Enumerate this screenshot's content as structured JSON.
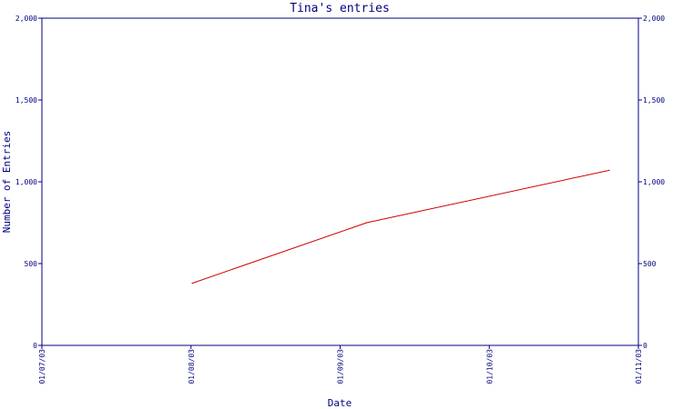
{
  "chart_data": {
    "type": "line",
    "title": "Tina's entries",
    "xlabel": "Date",
    "ylabel": "Number of Entries",
    "x_ticks": [
      "01/07/03",
      "01/08/03",
      "01/09/03",
      "01/10/03",
      "01/11/03"
    ],
    "y_ticks": [
      "0",
      "500",
      "1,000",
      "1,500",
      "2,000"
    ],
    "ylim": [
      0,
      2000
    ],
    "xlim": [
      "2003-07-01",
      "2003-11-01"
    ],
    "grid": false,
    "colors": {
      "axis": "#000080",
      "series": "#d00000"
    },
    "series": [
      {
        "points": [
          {
            "x": "2003-08-01",
            "y": 380
          },
          {
            "x": "2003-09-06",
            "y": 750
          },
          {
            "x": "2003-10-26",
            "y": 1070
          }
        ]
      }
    ]
  }
}
